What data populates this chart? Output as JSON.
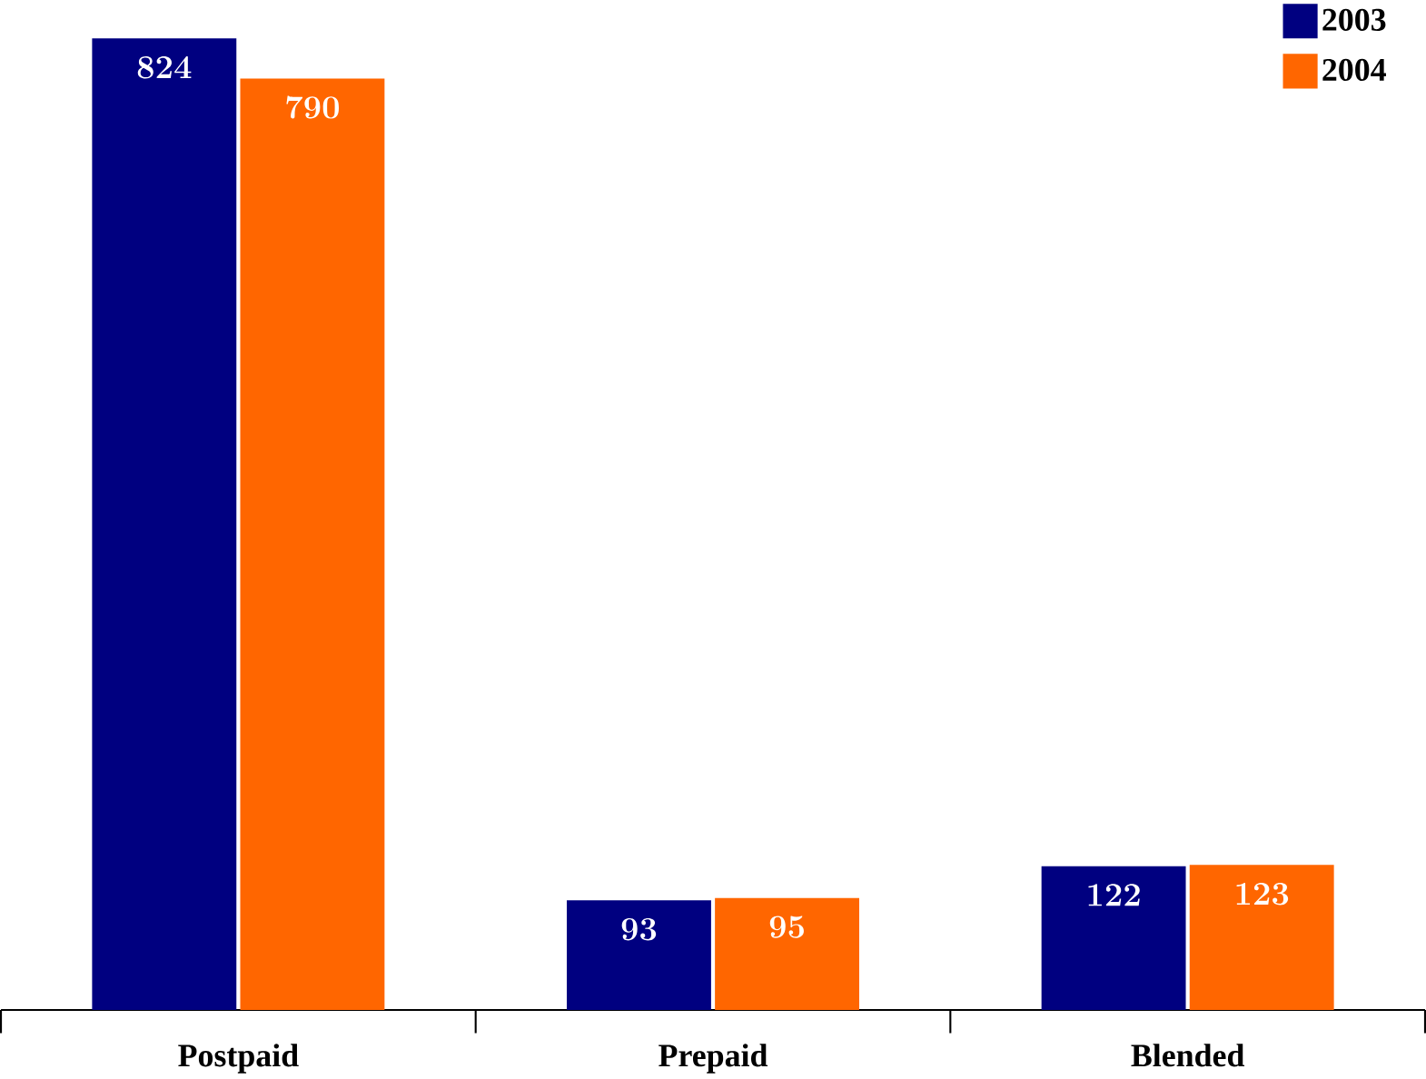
{
  "chart_data": {
    "type": "bar",
    "categories": [
      "Postpaid",
      "Prepaid",
      "Blended"
    ],
    "series": [
      {
        "name": "2003",
        "color": "#000080",
        "values": [
          824,
          93,
          122
        ]
      },
      {
        "name": "2004",
        "color": "#ff6600",
        "values": [
          790,
          95,
          123
        ]
      }
    ],
    "data_labels": true,
    "legend": "top right"
  }
}
